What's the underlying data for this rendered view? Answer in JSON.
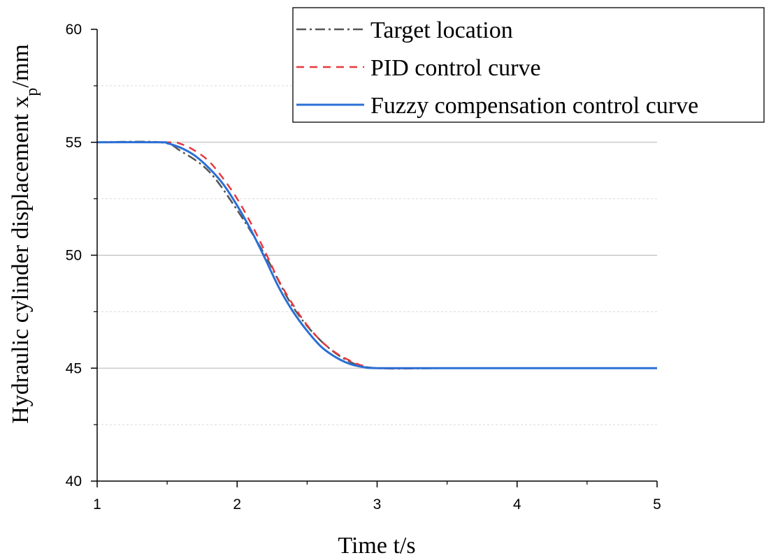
{
  "chart_data": {
    "type": "line",
    "xlabel": "Time t/s",
    "ylabel": "Hydraulic cylinder displacement x",
    "ylabel_subscript": "p",
    "ylabel_unit": "/mm",
    "xlim": [
      1,
      5
    ],
    "ylim": [
      40,
      60
    ],
    "x_ticks": [
      "1",
      "2",
      "3",
      "4",
      "5"
    ],
    "y_ticks": [
      "40",
      "45",
      "50",
      "55",
      "60"
    ],
    "grid": "horizontal",
    "legend_position": "top-right",
    "series": [
      {
        "name": "Target location",
        "style": "dash-dot",
        "color": "#555555",
        "x": [
          1,
          1.45,
          1.6,
          1.8,
          2.0,
          2.2,
          2.4,
          2.6,
          2.8,
          3.0,
          3.5,
          4.0,
          4.5,
          5.0
        ],
        "y": [
          55,
          55,
          54.6,
          53.7,
          52.0,
          50.0,
          47.7,
          46.2,
          45.3,
          45,
          45,
          45,
          45,
          45
        ]
      },
      {
        "name": "PID control curve",
        "style": "dash",
        "color": "#e8383d",
        "x": [
          1,
          1.5,
          1.6,
          1.7,
          1.8,
          1.9,
          2.0,
          2.1,
          2.2,
          2.3,
          2.4,
          2.5,
          2.6,
          2.7,
          2.8,
          2.9,
          3.0,
          3.5,
          4.0,
          4.5,
          5.0
        ],
        "y": [
          55,
          55,
          54.92,
          54.62,
          54.15,
          53.4,
          52.5,
          51.4,
          50.15,
          48.85,
          47.8,
          46.9,
          46.2,
          45.7,
          45.35,
          45.1,
          45,
          45,
          45,
          45,
          45
        ]
      },
      {
        "name": "Fuzzy compensation control curve",
        "style": "solid",
        "color": "#2b6fd6",
        "x": [
          1,
          1.45,
          1.5,
          1.6,
          1.7,
          1.8,
          1.9,
          2.0,
          2.1,
          2.2,
          2.3,
          2.4,
          2.5,
          2.6,
          2.7,
          2.8,
          2.9,
          3.0,
          3.5,
          4.0,
          4.5,
          5.0
        ],
        "y": [
          55,
          55,
          54.96,
          54.75,
          54.4,
          53.85,
          53.15,
          52.2,
          51.1,
          49.85,
          48.55,
          47.5,
          46.65,
          45.95,
          45.5,
          45.2,
          45.05,
          45,
          45,
          45,
          45,
          45
        ]
      }
    ]
  }
}
